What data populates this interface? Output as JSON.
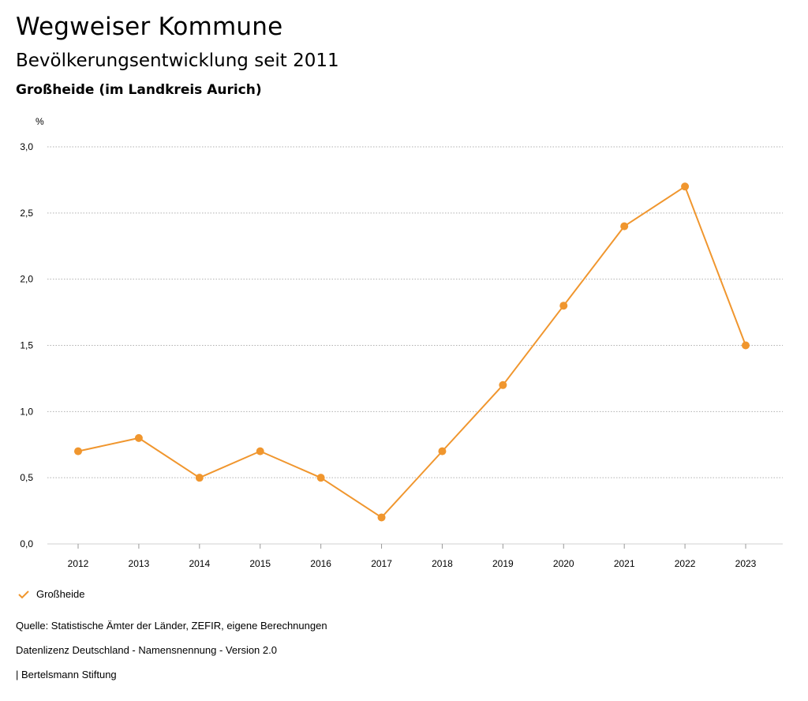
{
  "header": {
    "title": "Wegweiser Kommune",
    "subtitle": "Bevölkerungsentwicklung seit 2011",
    "region": "Großheide (im Landkreis Aurich)"
  },
  "chart_data": {
    "type": "line",
    "title": "Bevölkerungsentwicklung seit 2011",
    "xlabel": "",
    "ylabel": "%",
    "categories": [
      "2012",
      "2013",
      "2014",
      "2015",
      "2016",
      "2017",
      "2018",
      "2019",
      "2020",
      "2021",
      "2022",
      "2023"
    ],
    "series": [
      {
        "name": "Großheide",
        "color": "#f0962e",
        "values": [
          0.7,
          0.8,
          0.5,
          0.7,
          0.5,
          0.2,
          0.7,
          1.2,
          1.8,
          2.4,
          2.7,
          1.5
        ]
      }
    ],
    "ylim": [
      0,
      3.0
    ],
    "yticks": [
      "0,0",
      "0,5",
      "1,0",
      "1,5",
      "2,0",
      "2,5",
      "3,0"
    ],
    "grid": true,
    "legend": "bottom-left"
  },
  "legend": {
    "label": "Großheide",
    "icon": "check-icon"
  },
  "footer": {
    "source": "Quelle: Statistische Ämter der Länder, ZEFIR, eigene Berechnungen",
    "license": "Datenlizenz Deutschland - Namensnennung - Version 2.0",
    "publisher": "| Bertelsmann Stiftung"
  }
}
